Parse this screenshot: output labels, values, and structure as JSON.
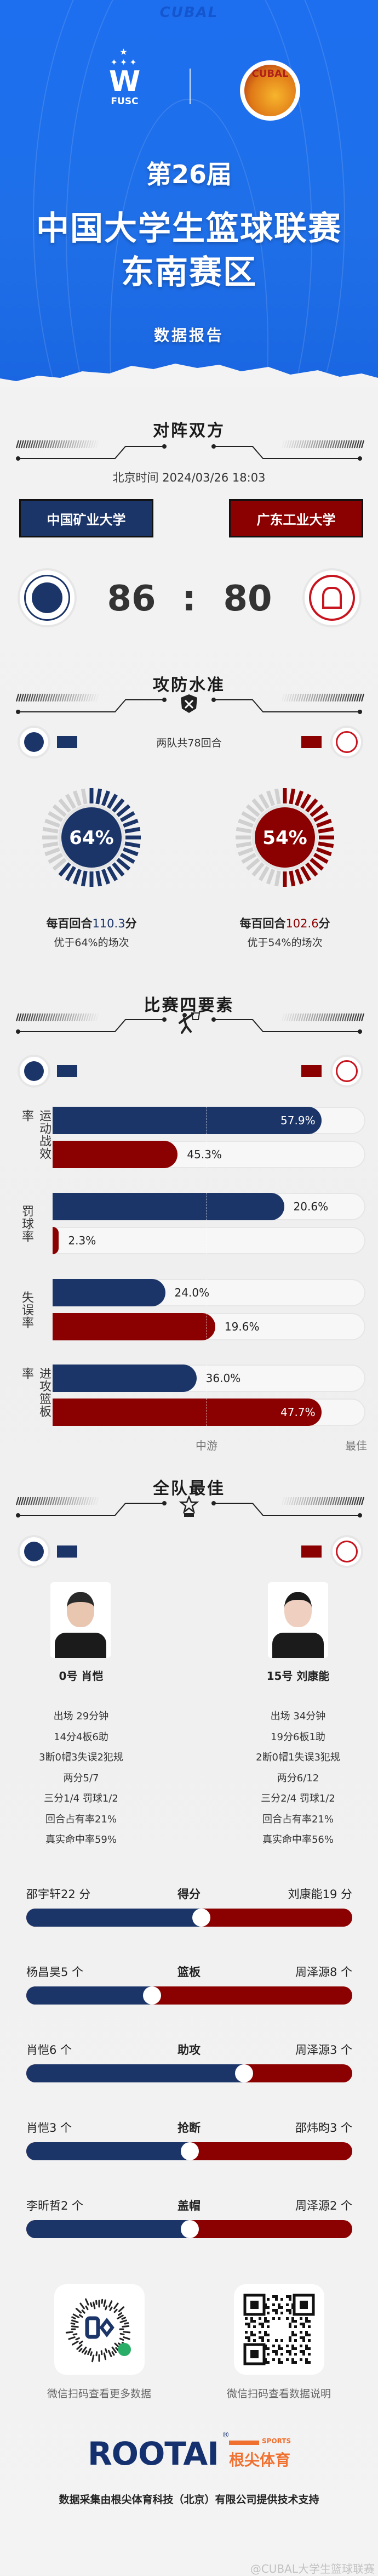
{
  "header": {
    "brand": "CUBAL",
    "fusc_logo": "FUSC",
    "cubal_logo": "CUBAL",
    "edition": "第26届",
    "title_line1": "中国大学生篮球联赛",
    "title_line2": "东南赛区",
    "subtitle": "数据报告"
  },
  "colors": {
    "home": "#1c3569",
    "away": "#8b0000",
    "track": "#d0d0d0"
  },
  "matchup": {
    "title": "对阵双方",
    "datetime": "北京时间 2024/03/26 18:03",
    "separator": ":",
    "home": {
      "name": "中国矿业大学",
      "score": "86"
    },
    "away": {
      "name": "广东工业大学",
      "score": "80"
    }
  },
  "offense": {
    "title": "攻防水准",
    "possessions": "两队共78回合",
    "home": {
      "percentile": 64,
      "percent_label": "64%",
      "rating_prefix": "每百回合",
      "rating": "110.3",
      "rating_suffix": "分",
      "better_than": "优于64%的场次"
    },
    "away": {
      "percentile": 54,
      "percent_label": "54%",
      "rating_prefix": "每百回合",
      "rating": "102.6",
      "rating_suffix": "分",
      "better_than": "优于54%的场次"
    }
  },
  "four_factors": {
    "title": "比赛四要素",
    "axis_mid": "中游",
    "axis_best": "最佳",
    "factors": [
      {
        "label": "运动战效率",
        "home": {
          "value": "57.9%",
          "rank": 0.86
        },
        "away": {
          "value": "45.3%",
          "rank": 0.4
        }
      },
      {
        "label": "罚球率",
        "home": {
          "value": "20.6%",
          "rank": 0.74
        },
        "away": {
          "value": "2.3%",
          "rank": 0.02
        }
      },
      {
        "label": "失误率",
        "home": {
          "value": "24.0%",
          "rank": 0.36
        },
        "away": {
          "value": "19.6%",
          "rank": 0.52
        }
      },
      {
        "label": "进攻篮板率",
        "home": {
          "value": "36.0%",
          "rank": 0.46
        },
        "away": {
          "value": "47.7%",
          "rank": 0.86
        }
      }
    ]
  },
  "best": {
    "title": "全队最佳",
    "home_player": {
      "name": "0号 肖恺",
      "lines": [
        "出场 29分钟",
        "14分4板6助",
        "3断0帽3失误2犯规",
        "两分5/7",
        "三分1/4 罚球1/2",
        "回合占有率21%",
        "真实命中率59%"
      ]
    },
    "away_player": {
      "name": "15号 刘康能",
      "lines": [
        "出场 34分钟",
        "19分6板1助",
        "2断0帽1失误3犯规",
        "两分6/12",
        "三分2/4 罚球1/2",
        "回合占有率21%",
        "真实命中率56%"
      ]
    },
    "leaders": [
      {
        "category": "得分",
        "home": "邵宇轩22 分",
        "away": "刘康能19 分",
        "home_value": 22,
        "away_value": 19
      },
      {
        "category": "篮板",
        "home": "杨昌昊5 个",
        "away": "周泽源8 个",
        "home_value": 5,
        "away_value": 8
      },
      {
        "category": "助攻",
        "home": "肖恺6 个",
        "away": "周泽源3 个",
        "home_value": 6,
        "away_value": 3
      },
      {
        "category": "抢断",
        "home": "肖恺3 个",
        "away": "邵炜昀3 个",
        "home_value": 3,
        "away_value": 3
      },
      {
        "category": "盖帽",
        "home": "李昕哲2 个",
        "away": "周泽源2 个",
        "home_value": 2,
        "away_value": 2
      }
    ]
  },
  "footer": {
    "qr_left_caption": "微信扫码查看更多数据",
    "qr_right_caption": "微信扫码查看数据说明",
    "sponsor_logo": "ROOTAI",
    "sponsor_reg": "®",
    "sponsor_sports": "SPORTS",
    "sponsor_cn": "根尖体育",
    "credit": "数据采集由根尖体育科技（北京）有限公司提供技术支持",
    "watermark": "@CUBAL大学生篮球联赛"
  }
}
